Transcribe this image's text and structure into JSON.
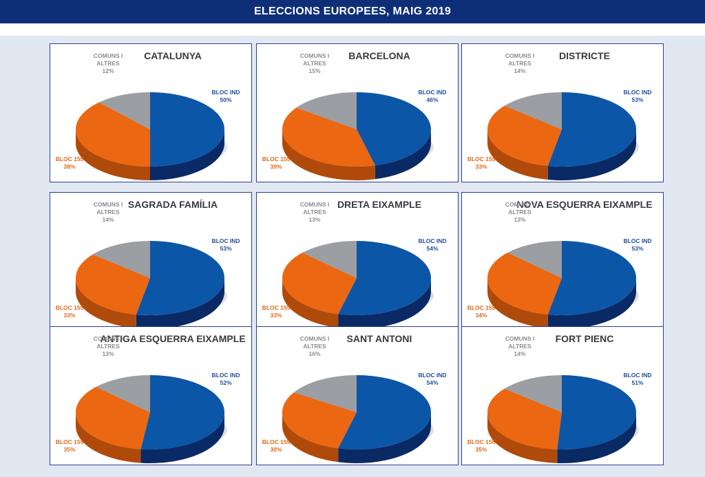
{
  "header": {
    "title": "ELECCIONS EUROPEES, MAIG 2019"
  },
  "colors": {
    "bloc_ind": "#0c56a8",
    "bloc_155": "#ec6712",
    "comuns": "#9b9ea3",
    "label_blue": "#1f4e9c",
    "label_orange": "#e06a1a",
    "label_gray": "#8c8c8c"
  },
  "chart_data": [
    {
      "type": "pie",
      "title": "CATALUNYA",
      "slices": [
        {
          "label": "BLOC IND",
          "value": 50
        },
        {
          "label": "BLOC 155",
          "value": 38
        },
        {
          "label": "COMUNS I ALTRES",
          "value": 12
        }
      ]
    },
    {
      "type": "pie",
      "title": "BARCELONA",
      "slices": [
        {
          "label": "BLOC IND",
          "value": 46
        },
        {
          "label": "BLOC 155",
          "value": 39
        },
        {
          "label": "COMUNS I ALTRES",
          "value": 15
        }
      ]
    },
    {
      "type": "pie",
      "title": "DISTRICTE",
      "slices": [
        {
          "label": "BLOC IND",
          "value": 53
        },
        {
          "label": "BLOC 155",
          "value": 33
        },
        {
          "label": "COMUNS I ALTRES",
          "value": 14
        }
      ]
    },
    {
      "type": "pie",
      "title": "SAGRADA FAMÍLIA",
      "slices": [
        {
          "label": "BLOC IND",
          "value": 53
        },
        {
          "label": "BLOC 155",
          "value": 33
        },
        {
          "label": "COMUNS I ALTRES",
          "value": 14
        }
      ]
    },
    {
      "type": "pie",
      "title": "DRETA EIXAMPLE",
      "slices": [
        {
          "label": "BLOC IND",
          "value": 54
        },
        {
          "label": "BLOC 155",
          "value": 33
        },
        {
          "label": "COMUNS I ALTRES",
          "value": 13
        }
      ]
    },
    {
      "type": "pie",
      "title": "NOVA ESQUERRA EIXAMPLE",
      "slices": [
        {
          "label": "BLOC IND",
          "value": 53
        },
        {
          "label": "BLOC 155",
          "value": 34
        },
        {
          "label": "COMUNS I ALTRES",
          "value": 13
        }
      ]
    },
    {
      "type": "pie",
      "title": "ANTIGA ESQUERRA EIXAMPLE",
      "slices": [
        {
          "label": "BLOC IND",
          "value": 52
        },
        {
          "label": "BLOC 155",
          "value": 35
        },
        {
          "label": "COMUNS I ALTRES",
          "value": 13
        }
      ]
    },
    {
      "type": "pie",
      "title": "SANT ANTONI",
      "slices": [
        {
          "label": "BLOC IND",
          "value": 54
        },
        {
          "label": "BLOC 155",
          "value": 30
        },
        {
          "label": "COMUNS I ALTRES",
          "value": 16
        }
      ]
    },
    {
      "type": "pie",
      "title": "FORT PIENC",
      "slices": [
        {
          "label": "BLOC IND",
          "value": 51
        },
        {
          "label": "BLOC 155",
          "value": 35
        },
        {
          "label": "COMUNS I ALTRES",
          "value": 14
        }
      ]
    }
  ]
}
